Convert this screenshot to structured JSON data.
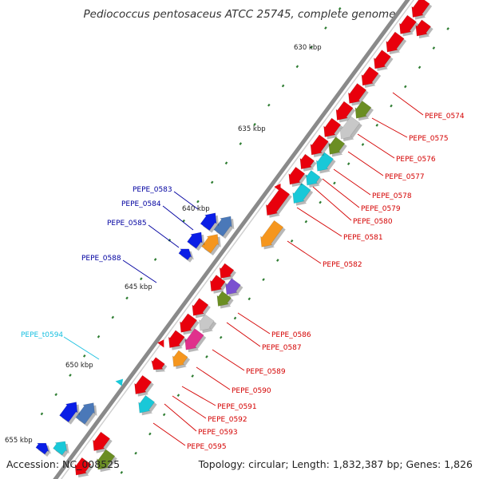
{
  "title": "Pediococcus pentosaceus ATCC 25745, complete genome",
  "accession_text": "Accession: NC_008525",
  "summary_text": "Topology: circular; Length: 1,832,387 bp; Genes: 1,826",
  "colors": {
    "backbone": "#8a8a8a",
    "red": "#e8000c",
    "green": "#6b8e23",
    "gray": "#c8c8c8",
    "cyan": "#19c8d8",
    "orange": "#f5961e",
    "blue": "#0a1ee6",
    "steelblue": "#4a78b8",
    "purple": "#7a50d0",
    "magenta": "#e0308c",
    "right_label": "#d40000",
    "left_label": "#0000a0",
    "rna_label": "#19c0e0",
    "tick": "#2e7d32"
  },
  "scale_marks": [
    {
      "label": "630 kbp"
    },
    {
      "label": "635 kbp"
    },
    {
      "label": "640 kbp"
    },
    {
      "label": "645 kbp"
    },
    {
      "label": "650 kbp"
    },
    {
      "label": "655 kbp"
    }
  ],
  "right_labels": [
    {
      "text": "PEPE_0574"
    },
    {
      "text": "PEPE_0575"
    },
    {
      "text": "PEPE_0576"
    },
    {
      "text": "PEPE_0577"
    },
    {
      "text": "PEPE_0578"
    },
    {
      "text": "PEPE_0579"
    },
    {
      "text": "PEPE_0580"
    },
    {
      "text": "PEPE_0581"
    },
    {
      "text": "PEPE_0582"
    },
    {
      "text": "PEPE_0586"
    },
    {
      "text": "PEPE_0587"
    },
    {
      "text": "PEPE_0589"
    },
    {
      "text": "PEPE_0590"
    },
    {
      "text": "PEPE_0591"
    },
    {
      "text": "PEPE_0592"
    },
    {
      "text": "PEPE_0593"
    },
    {
      "text": "PEPE_0595"
    }
  ],
  "left_labels": [
    {
      "text": "PEPE_0583"
    },
    {
      "text": "PEPE_0584"
    },
    {
      "text": "PEPE_0585"
    },
    {
      "text": "PEPE_0588"
    },
    {
      "text": "PEPE_t0594"
    }
  ]
}
